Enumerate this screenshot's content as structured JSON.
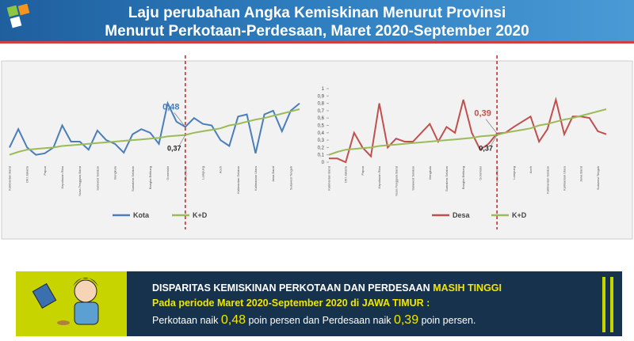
{
  "header": {
    "title": [
      "Laju perubahan Angka Kemiskinan Menurut Provinsi",
      "Menurut Perkotaan-Perdesaan, Maret 2020-September 2020"
    ]
  },
  "chart_data": [
    {
      "type": "line",
      "categories": [
        "Kalimantan Barat",
        null,
        "DKI Jakarta",
        null,
        "Papua",
        null,
        "Kepulauan Riau",
        null,
        "Nusa Tenggara Barat",
        null,
        "Sulawesi Selatan",
        null,
        "Bengkulu",
        null,
        "Sumatera Selatan",
        null,
        "Bangka Belitung",
        null,
        "Gorontalo",
        null,
        "Jawa Timur",
        null,
        "Lampung",
        null,
        "Aceh",
        null,
        "Kalimantan Selatan",
        null,
        "Kalimantan Utara",
        null,
        "Jawa Barat",
        null,
        "Sulawesi Tengah",
        null
      ],
      "ylim": [
        0,
        1
      ],
      "series": [
        {
          "name": "Kota",
          "color": "#4a7ebb",
          "values": [
            0.2,
            0.45,
            0.2,
            0.1,
            0.12,
            0.2,
            0.5,
            0.28,
            0.28,
            0.17,
            0.43,
            0.3,
            0.25,
            0.13,
            0.38,
            0.45,
            0.4,
            0.25,
            0.8,
            0.55,
            0.48,
            0.6,
            0.52,
            0.5,
            0.3,
            0.22,
            0.62,
            0.65,
            0.12,
            0.65,
            0.7,
            0.42,
            0.7,
            0.8
          ],
          "value_labels": [
            null,
            null,
            null,
            null,
            null,
            null,
            null,
            null,
            null,
            null,
            null,
            null,
            null,
            null,
            null,
            null,
            null,
            null,
            null,
            null,
            "0,48",
            null,
            null,
            null,
            null,
            null,
            null,
            null,
            null,
            null,
            null,
            null,
            null,
            null
          ]
        },
        {
          "name": "K+D",
          "color": "#9bbb59",
          "values": [
            0.1,
            0.14,
            0.17,
            0.18,
            0.19,
            0.2,
            0.22,
            0.23,
            0.24,
            0.25,
            0.26,
            0.27,
            0.28,
            0.29,
            0.3,
            0.31,
            0.32,
            0.33,
            0.35,
            0.36,
            0.37,
            0.4,
            0.42,
            0.44,
            0.46,
            0.5,
            0.52,
            0.55,
            0.58,
            0.6,
            0.63,
            0.66,
            0.69,
            0.72
          ],
          "value_labels": [
            null,
            null,
            null,
            null,
            null,
            null,
            null,
            null,
            null,
            null,
            null,
            null,
            null,
            null,
            null,
            null,
            null,
            null,
            null,
            null,
            "0,37",
            null,
            null,
            null,
            null,
            null,
            null,
            null,
            null,
            null,
            null,
            null,
            null,
            null
          ]
        }
      ]
    },
    {
      "type": "line",
      "categories": [
        "Kalimantan Barat",
        null,
        "DKI Jakarta",
        null,
        "Papua",
        null,
        "Kepulauan Riau",
        null,
        "Nusa Tenggara Barat",
        null,
        "Sulawesi Selatan",
        null,
        "Bengkulu",
        null,
        "Sumatera Selatan",
        null,
        "Bangka Belitung",
        null,
        "Gorontalo",
        null,
        "Jawa Timur",
        null,
        "Lampung",
        null,
        "Aceh",
        null,
        "Kalimantan Selatan",
        null,
        "Kalimantan Utara",
        null,
        "Jawa Barat",
        null,
        "Sulawesi Tengah",
        null
      ],
      "ylim": [
        0,
        1
      ],
      "yticks": [
        0,
        {
          "value": 0.1,
          "label": "0,1"
        },
        {
          "value": 0.2,
          "label": "0,2"
        },
        {
          "value": 0.3,
          "label": "0,3"
        },
        {
          "value": 0.4,
          "label": "0,4"
        },
        {
          "value": 0.5,
          "label": "0,5"
        },
        {
          "value": 0.6,
          "label": "0,6"
        },
        {
          "value": 0.7,
          "label": "0,7"
        },
        {
          "value": 0.8,
          "label": "0,8"
        },
        {
          "value": 0.9,
          "label": "0,9"
        },
        1
      ],
      "series": [
        {
          "name": "Desa",
          "color": "#c0504d",
          "values": [
            0.05,
            0.05,
            0,
            0.4,
            0.2,
            0.08,
            0.8,
            0.2,
            0.32,
            0.28,
            0.28,
            0.4,
            0.52,
            0.28,
            0.48,
            0.4,
            0.85,
            0.4,
            0.17,
            0.25,
            0.39,
            0.4,
            0.48,
            0.55,
            0.62,
            0.28,
            0.45,
            0.85,
            0.38,
            0.62,
            0.62,
            0.6,
            0.42,
            0.38
          ],
          "value_labels": [
            null,
            null,
            null,
            null,
            null,
            null,
            null,
            null,
            null,
            null,
            null,
            null,
            null,
            null,
            null,
            null,
            null,
            null,
            null,
            null,
            "0,39",
            null,
            null,
            null,
            null,
            null,
            null,
            null,
            null,
            null,
            null,
            null,
            null,
            null
          ]
        },
        {
          "name": "K+D",
          "color": "#9bbb59",
          "values": [
            0.1,
            0.14,
            0.17,
            0.18,
            0.19,
            0.2,
            0.22,
            0.23,
            0.24,
            0.25,
            0.26,
            0.27,
            0.28,
            0.29,
            0.3,
            0.31,
            0.32,
            0.33,
            0.35,
            0.36,
            0.37,
            0.4,
            0.42,
            0.44,
            0.46,
            0.5,
            0.52,
            0.55,
            0.58,
            0.6,
            0.63,
            0.66,
            0.69,
            0.72
          ],
          "value_labels": [
            null,
            null,
            null,
            null,
            null,
            null,
            null,
            null,
            null,
            null,
            null,
            null,
            null,
            null,
            null,
            null,
            null,
            null,
            null,
            null,
            "0,37",
            null,
            null,
            null,
            null,
            null,
            null,
            null,
            null,
            null,
            null,
            null,
            null,
            null
          ]
        }
      ]
    }
  ],
  "footer": {
    "line1": [
      "DISPARITAS KEMISKINAN PERKOTAAN DAN PERDESAAN ",
      "MASIH TINGGI"
    ],
    "line2": "Pada periode Maret 2020-September 2020 di JAWA TIMUR :",
    "line3": [
      "Perkotaan naik ",
      "0,48",
      " poin persen dan Perdesaan naik ",
      "0,39",
      " poin persen."
    ]
  }
}
